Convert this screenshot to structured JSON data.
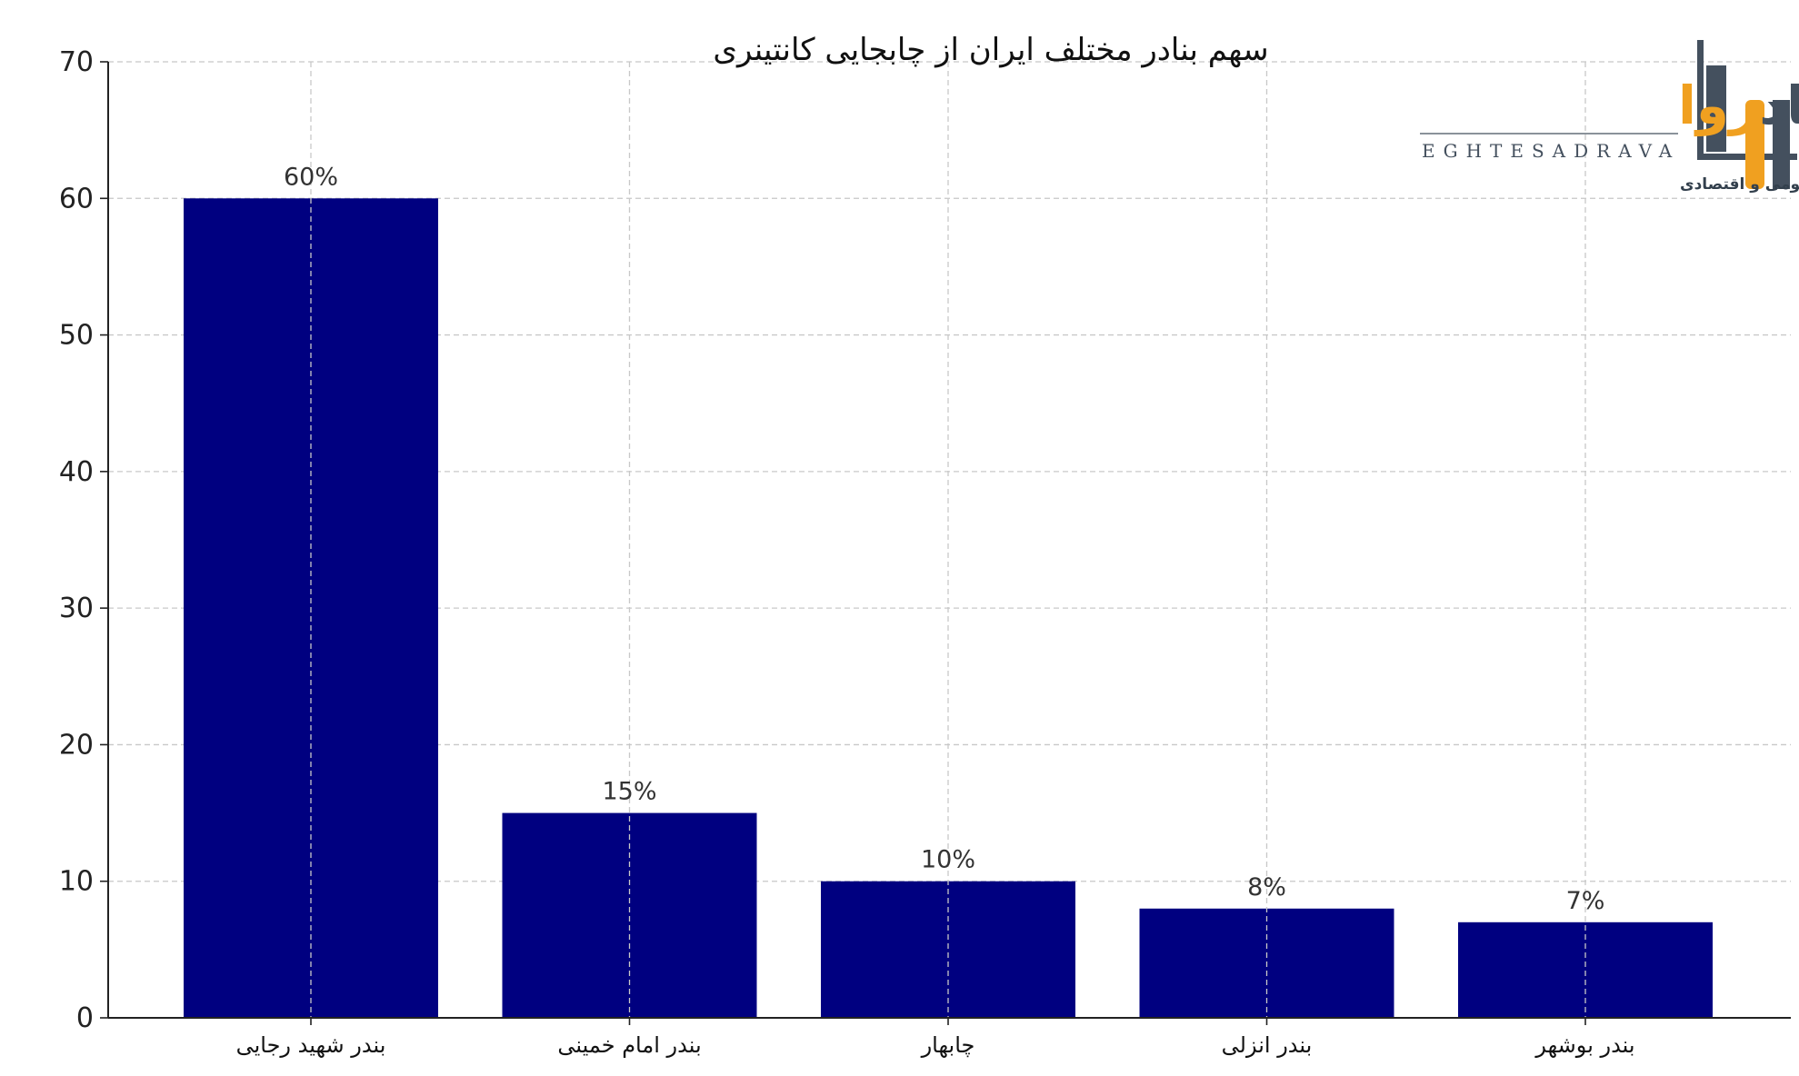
{
  "chart_data": {
    "type": "bar",
    "title": "سهم بنادر مختلف ایران از چابجایی کانتینری",
    "categories": [
      "بندر شهید رجایی",
      "بندر امام خمینی",
      "چابهار",
      "بندر انزلی",
      "بندر بوشهر"
    ],
    "values": [
      60,
      15,
      10,
      8,
      7
    ],
    "data_labels": [
      "60%",
      "15%",
      "10%",
      "8%",
      "7%"
    ],
    "xlabel": "",
    "ylabel": "",
    "ylim": [
      0,
      70
    ],
    "yticks": [
      0,
      10,
      20,
      30,
      40,
      50,
      60,
      70
    ],
    "grid": true,
    "bar_color": "#000080"
  },
  "logo": {
    "name_dark": "اقتصاد",
    "name_accent": "روا",
    "latin": "EGHTESADRAVA",
    "tagline": "رسانه تخصصی حکمروایی و سیاستگذاری عمومی و اقتصادی",
    "colors": {
      "dark": "#44505e",
      "accent": "#f0a020"
    }
  }
}
